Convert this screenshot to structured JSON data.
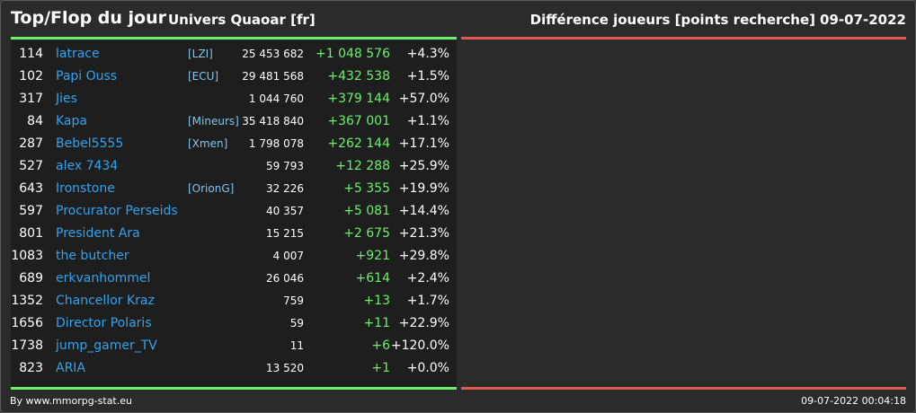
{
  "header": {
    "title": "Top/Flop du jour",
    "universe": "Univers Quaoar [fr]",
    "metric": "Différence joueurs [points recherche]",
    "date": "09-07-2022"
  },
  "colors": {
    "background": "#2b2b2b",
    "panel": "#1e1e1e",
    "player_link": "#33a3ee",
    "alliance_link": "#7ec6f0",
    "positive": "#6cf06c",
    "top_line": "#6cf06c",
    "flop_line": "#e05a50"
  },
  "top": [
    {
      "rank": "114",
      "name": "latrace",
      "alliance": "[LZI]",
      "points": "25 453 682",
      "diff": "+1 048 576",
      "pct": "+4.3%"
    },
    {
      "rank": "102",
      "name": "Papi Ouss",
      "alliance": "[ECU]",
      "points": "29 481 568",
      "diff": "+432 538",
      "pct": "+1.5%"
    },
    {
      "rank": "317",
      "name": "Jies",
      "alliance": "",
      "points": "1 044 760",
      "diff": "+379 144",
      "pct": "+57.0%"
    },
    {
      "rank": "84",
      "name": "Kapa",
      "alliance": "[Mineurs]",
      "points": "35 418 840",
      "diff": "+367 001",
      "pct": "+1.1%"
    },
    {
      "rank": "287",
      "name": "Bebel5555",
      "alliance": "[Xmen]",
      "points": "1 798 078",
      "diff": "+262 144",
      "pct": "+17.1%"
    },
    {
      "rank": "527",
      "name": "alex 7434",
      "alliance": "",
      "points": "59 793",
      "diff": "+12 288",
      "pct": "+25.9%"
    },
    {
      "rank": "643",
      "name": "Ironstone",
      "alliance": "[OrionG]",
      "points": "32 226",
      "diff": "+5 355",
      "pct": "+19.9%"
    },
    {
      "rank": "597",
      "name": "Procurator Perseids",
      "alliance": "",
      "points": "40 357",
      "diff": "+5 081",
      "pct": "+14.4%"
    },
    {
      "rank": "801",
      "name": "President Ara",
      "alliance": "",
      "points": "15 215",
      "diff": "+2 675",
      "pct": "+21.3%"
    },
    {
      "rank": "1083",
      "name": "the butcher",
      "alliance": "",
      "points": "4 007",
      "diff": "+921",
      "pct": "+29.8%"
    },
    {
      "rank": "689",
      "name": "erkvanhommel",
      "alliance": "",
      "points": "26 046",
      "diff": "+614",
      "pct": "+2.4%"
    },
    {
      "rank": "1352",
      "name": "Chancellor Kraz",
      "alliance": "",
      "points": "759",
      "diff": "+13",
      "pct": "+1.7%"
    },
    {
      "rank": "1656",
      "name": "Director Polaris",
      "alliance": "",
      "points": "59",
      "diff": "+11",
      "pct": "+22.9%"
    },
    {
      "rank": "1738",
      "name": "jump_gamer_TV",
      "alliance": "",
      "points": "11",
      "diff": "+6",
      "pct": "+120.0%"
    },
    {
      "rank": "823",
      "name": "ARIA",
      "alliance": "",
      "points": "13 520",
      "diff": "+1",
      "pct": "+0.0%"
    }
  ],
  "footer": {
    "credit": "By www.mmorpg-stat.eu",
    "timestamp": "09-07-2022 00:04:18"
  }
}
